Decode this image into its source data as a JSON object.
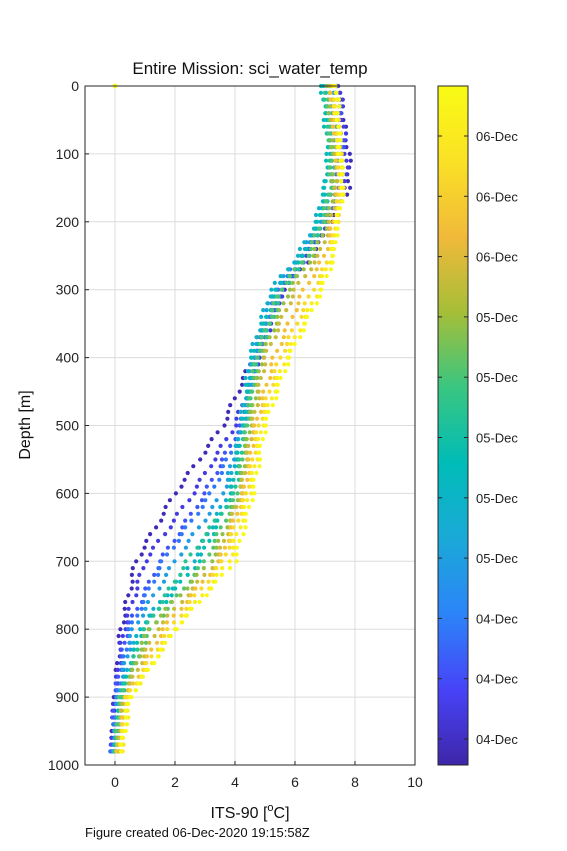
{
  "chart_data": {
    "type": "scatter",
    "title": "Entire Mission: sci_water_temp",
    "xlabel": "ITS-90 [°C]",
    "ylabel": "Depth [m]",
    "xlim": [
      -1,
      10
    ],
    "ylim": [
      0,
      1000
    ],
    "y_reversed": true,
    "grid": true,
    "x_ticks": [
      "0",
      "2",
      "4",
      "6",
      "8",
      "10"
    ],
    "y_ticks": [
      "0",
      "100",
      "200",
      "300",
      "400",
      "500",
      "600",
      "700",
      "800",
      "900",
      "1000"
    ],
    "colorbar": {
      "colormap": "parula",
      "tick_labels": [
        "06-Dec",
        "06-Dec",
        "06-Dec",
        "05-Dec",
        "05-Dec",
        "05-Dec",
        "05-Dec",
        "05-Dec",
        "04-Dec",
        "04-Dec",
        "04-Dec"
      ]
    },
    "series": [
      {
        "t": 0.02,
        "profile": [
          [
            0,
            7.4
          ],
          [
            100,
            7.8
          ],
          [
            150,
            7.8
          ],
          [
            200,
            7.2
          ],
          [
            250,
            6.6
          ],
          [
            300,
            5.6
          ],
          [
            400,
            4.6
          ],
          [
            500,
            3.6
          ],
          [
            600,
            2.0
          ],
          [
            700,
            0.7
          ],
          [
            800,
            0.2
          ],
          [
            900,
            0.0
          ],
          [
            980,
            -0.1
          ]
        ]
      },
      {
        "t": 0.08,
        "profile": [
          [
            0,
            7.5
          ],
          [
            100,
            7.7
          ],
          [
            150,
            7.7
          ],
          [
            200,
            7.1
          ],
          [
            250,
            6.4
          ],
          [
            300,
            5.6
          ],
          [
            400,
            4.8
          ],
          [
            500,
            4.0
          ],
          [
            600,
            2.6
          ],
          [
            700,
            1.0
          ],
          [
            800,
            0.3
          ],
          [
            900,
            0.0
          ],
          [
            980,
            -0.1
          ]
        ]
      },
      {
        "t": 0.14,
        "profile": [
          [
            0,
            7.4
          ],
          [
            100,
            7.6
          ],
          [
            150,
            7.5
          ],
          [
            200,
            7.0
          ],
          [
            250,
            6.3
          ],
          [
            300,
            5.5
          ],
          [
            400,
            4.7
          ],
          [
            500,
            4.2
          ],
          [
            600,
            3.0
          ],
          [
            700,
            1.5
          ],
          [
            800,
            0.4
          ],
          [
            900,
            0.0
          ],
          [
            980,
            -0.1
          ]
        ]
      },
      {
        "t": 0.2,
        "profile": [
          [
            0,
            7.3
          ],
          [
            100,
            7.5
          ],
          [
            150,
            7.3
          ],
          [
            200,
            6.9
          ],
          [
            250,
            6.2
          ],
          [
            300,
            5.4
          ],
          [
            400,
            4.7
          ],
          [
            500,
            4.3
          ],
          [
            600,
            3.2
          ],
          [
            700,
            1.6
          ],
          [
            800,
            0.5
          ],
          [
            900,
            0.1
          ],
          [
            980,
            -0.1
          ]
        ]
      },
      {
        "t": 0.3,
        "profile": [
          [
            0,
            7.2
          ],
          [
            100,
            7.4
          ],
          [
            150,
            7.2
          ],
          [
            200,
            6.8
          ],
          [
            250,
            6.2
          ],
          [
            300,
            5.3
          ],
          [
            400,
            4.6
          ],
          [
            500,
            4.3
          ],
          [
            600,
            3.6
          ],
          [
            700,
            2.0
          ],
          [
            800,
            0.6
          ],
          [
            900,
            0.1
          ],
          [
            980,
            0.0
          ]
        ]
      },
      {
        "t": 0.38,
        "profile": [
          [
            0,
            7.0
          ],
          [
            100,
            7.2
          ],
          [
            150,
            7.0
          ],
          [
            200,
            6.7
          ],
          [
            250,
            6.1
          ],
          [
            300,
            5.2
          ],
          [
            400,
            4.5
          ],
          [
            500,
            4.2
          ],
          [
            600,
            3.8
          ],
          [
            700,
            2.6
          ],
          [
            800,
            0.8
          ],
          [
            900,
            0.2
          ],
          [
            980,
            0.0
          ]
        ]
      },
      {
        "t": 0.45,
        "profile": [
          [
            0,
            6.9
          ],
          [
            100,
            7.1
          ],
          [
            150,
            7.0
          ],
          [
            200,
            6.8
          ],
          [
            250,
            6.3
          ],
          [
            300,
            5.4
          ],
          [
            400,
            4.6
          ],
          [
            500,
            4.3
          ],
          [
            600,
            3.9
          ],
          [
            700,
            2.8
          ],
          [
            800,
            0.9
          ],
          [
            900,
            0.2
          ],
          [
            980,
            0.0
          ]
        ]
      },
      {
        "t": 0.52,
        "profile": [
          [
            0,
            7.0
          ],
          [
            100,
            7.2
          ],
          [
            150,
            7.2
          ],
          [
            200,
            7.0
          ],
          [
            250,
            6.5
          ],
          [
            300,
            5.6
          ],
          [
            400,
            4.8
          ],
          [
            500,
            4.4
          ],
          [
            600,
            4.0
          ],
          [
            700,
            2.4
          ],
          [
            800,
            1.0
          ],
          [
            900,
            0.2
          ],
          [
            980,
            0.0
          ]
        ]
      },
      {
        "t": 0.58,
        "profile": [
          [
            0,
            7.1
          ],
          [
            100,
            7.2
          ],
          [
            150,
            7.2
          ],
          [
            200,
            6.9
          ],
          [
            250,
            6.4
          ],
          [
            300,
            5.5
          ],
          [
            400,
            4.7
          ],
          [
            500,
            4.4
          ],
          [
            600,
            4.1
          ],
          [
            700,
            3.0
          ],
          [
            800,
            1.2
          ],
          [
            900,
            0.2
          ],
          [
            980,
            0.0
          ]
        ]
      },
      {
        "t": 0.65,
        "profile": [
          [
            0,
            7.1
          ],
          [
            100,
            7.3
          ],
          [
            150,
            7.3
          ],
          [
            200,
            7.1
          ],
          [
            250,
            6.6
          ],
          [
            300,
            5.8
          ],
          [
            400,
            4.9
          ],
          [
            500,
            4.5
          ],
          [
            600,
            4.2
          ],
          [
            700,
            3.2
          ],
          [
            800,
            1.1
          ],
          [
            900,
            0.3
          ],
          [
            980,
            0.1
          ]
        ]
      },
      {
        "t": 0.72,
        "profile": [
          [
            0,
            7.2
          ],
          [
            100,
            7.4
          ],
          [
            150,
            7.4
          ],
          [
            200,
            7.2
          ],
          [
            250,
            6.8
          ],
          [
            300,
            6.0
          ],
          [
            400,
            5.0
          ],
          [
            500,
            4.6
          ],
          [
            600,
            4.2
          ],
          [
            700,
            3.4
          ],
          [
            800,
            1.4
          ],
          [
            900,
            0.3
          ],
          [
            980,
            0.1
          ]
        ]
      },
      {
        "t": 0.8,
        "profile": [
          [
            0,
            7.2
          ],
          [
            100,
            7.4
          ],
          [
            150,
            7.5
          ],
          [
            200,
            7.3
          ],
          [
            250,
            7.0
          ],
          [
            300,
            6.3
          ],
          [
            400,
            5.3
          ],
          [
            500,
            4.7
          ],
          [
            600,
            4.3
          ],
          [
            700,
            3.5
          ],
          [
            800,
            1.6
          ],
          [
            900,
            0.4
          ],
          [
            980,
            0.1
          ]
        ]
      },
      {
        "t": 0.87,
        "profile": [
          [
            0,
            7.3
          ],
          [
            100,
            7.5
          ],
          [
            150,
            7.5
          ],
          [
            200,
            7.4
          ],
          [
            250,
            7.2
          ],
          [
            300,
            6.6
          ],
          [
            400,
            5.5
          ],
          [
            500,
            4.8
          ],
          [
            600,
            4.4
          ],
          [
            700,
            3.6
          ],
          [
            800,
            1.8
          ],
          [
            900,
            0.4
          ],
          [
            980,
            0.2
          ]
        ]
      },
      {
        "t": 0.94,
        "profile": [
          [
            0,
            7.3
          ],
          [
            100,
            7.5
          ],
          [
            150,
            7.6
          ],
          [
            200,
            7.4
          ],
          [
            250,
            7.2
          ],
          [
            300,
            6.8
          ],
          [
            400,
            5.7
          ],
          [
            500,
            4.9
          ],
          [
            600,
            4.5
          ],
          [
            700,
            3.8
          ],
          [
            800,
            2.0
          ],
          [
            900,
            0.5
          ],
          [
            980,
            0.2
          ]
        ]
      },
      {
        "t": 0.99,
        "profile": [
          [
            0,
            7.4
          ],
          [
            100,
            7.5
          ],
          [
            150,
            7.6
          ],
          [
            200,
            7.4
          ],
          [
            250,
            7.3
          ],
          [
            300,
            6.9
          ],
          [
            400,
            5.8
          ],
          [
            500,
            5.0
          ],
          [
            600,
            4.6
          ],
          [
            700,
            4.0
          ],
          [
            800,
            2.0
          ],
          [
            900,
            0.5
          ],
          [
            980,
            0.2
          ]
        ]
      }
    ],
    "outlier_points": [
      {
        "x": 0,
        "y": 0,
        "t": 1.0
      }
    ]
  },
  "caption": "Figure created 06-Dec-2020 19:15:58Z",
  "colors": {
    "grid": "#dcdcdc",
    "axis": "#262626",
    "colormap_stops": [
      "#3e26a8",
      "#4743f8",
      "#2c84f9",
      "#1aa9d7",
      "#00bcb7",
      "#39c681",
      "#a5be38",
      "#f1b93a",
      "#fae125",
      "#f9fb14"
    ]
  }
}
